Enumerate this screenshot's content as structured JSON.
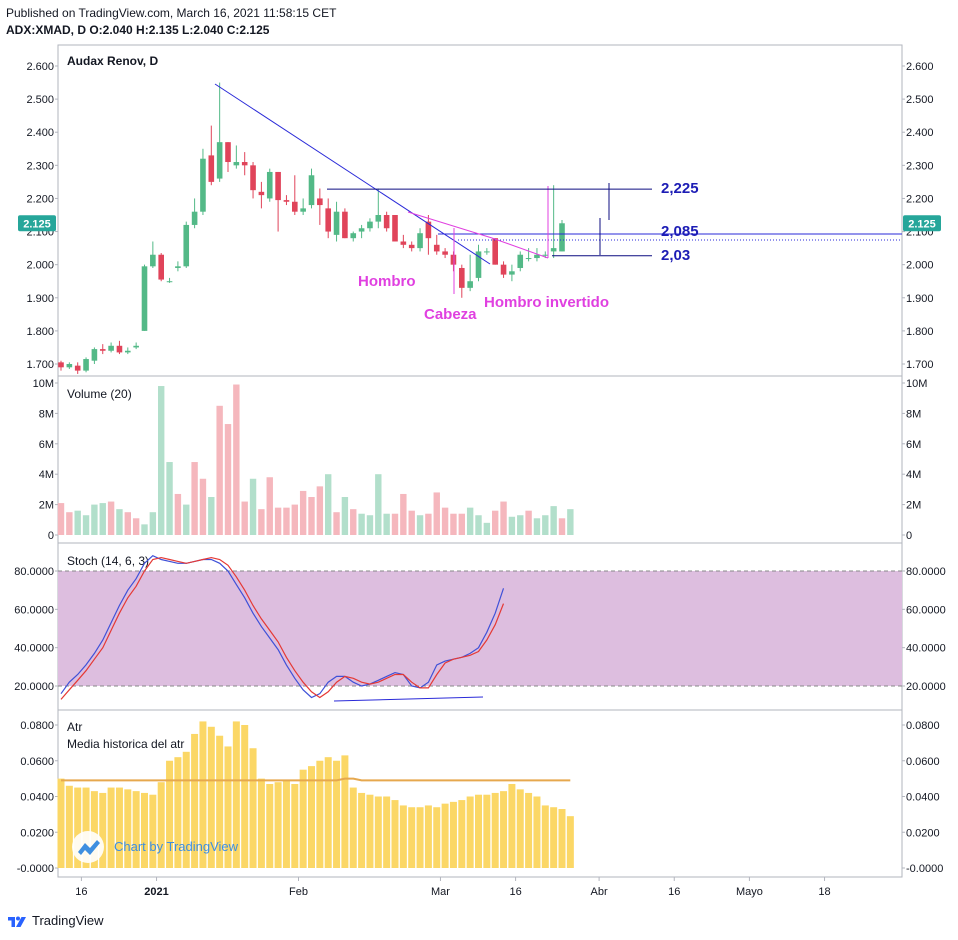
{
  "header": {
    "published": "Published on TradingView.com, March 16, 2021 11:58:15 CET",
    "symbol_line": "ADX:XMAD, D O:2.040 H:2.135 L:2.040 C:2.125"
  },
  "footer": {
    "brand": "TradingView"
  },
  "colors": {
    "up": "#26a69a",
    "up_candle": "#53b987",
    "down": "#e0445a",
    "vol_up": "#b2dfcb",
    "vol_down": "#f5b7bd",
    "stoch_k": "#3f51d8",
    "stoch_d": "#e53935",
    "stoch_band": "#ddbedf",
    "atr": "#fbd766",
    "atr_avg": "#e6a84e",
    "trend": "#2a2ad8",
    "pattern": "#e040e0",
    "level": "#0c0c80",
    "label_blue": "#1d1db5"
  },
  "chart_data": [
    {
      "type": "candlestick",
      "title": "Audax Renov, D",
      "last_price_label": "2.125",
      "y_ticks": [
        "2.600",
        "2.500",
        "2.400",
        "2.300",
        "2.200",
        "2.100",
        "2.000",
        "1.900",
        "1.800",
        "1.700"
      ],
      "ylim": [
        1.68,
        2.66
      ],
      "x_ticks": [
        "16",
        "2021",
        "Feb",
        "Mar",
        "16",
        "Abr",
        "16",
        "Mayo",
        "18"
      ],
      "x_tick_index": [
        4,
        13,
        30,
        47,
        56,
        66,
        75,
        84,
        93
      ],
      "candles": [
        {
          "o": 1.705,
          "h": 1.71,
          "l": 1.68,
          "c": 1.69
        },
        {
          "o": 1.69,
          "h": 1.705,
          "l": 1.685,
          "c": 1.7
        },
        {
          "o": 1.695,
          "h": 1.705,
          "l": 1.67,
          "c": 1.68
        },
        {
          "o": 1.68,
          "h": 1.72,
          "l": 1.675,
          "c": 1.715
        },
        {
          "o": 1.71,
          "h": 1.75,
          "l": 1.7,
          "c": 1.745
        },
        {
          "o": 1.745,
          "h": 1.76,
          "l": 1.73,
          "c": 1.74
        },
        {
          "o": 1.74,
          "h": 1.765,
          "l": 1.735,
          "c": 1.755
        },
        {
          "o": 1.755,
          "h": 1.77,
          "l": 1.73,
          "c": 1.735
        },
        {
          "o": 1.735,
          "h": 1.75,
          "l": 1.73,
          "c": 1.74
        },
        {
          "o": 1.75,
          "h": 1.765,
          "l": 1.745,
          "c": 1.755
        },
        {
          "o": 1.8,
          "h": 2.0,
          "l": 1.8,
          "c": 1.995
        },
        {
          "o": 1.995,
          "h": 2.07,
          "l": 1.99,
          "c": 2.03
        },
        {
          "o": 2.03,
          "h": 2.035,
          "l": 1.95,
          "c": 1.955
        },
        {
          "o": 1.95,
          "h": 1.96,
          "l": 1.945,
          "c": 1.95
        },
        {
          "o": 1.99,
          "h": 2.01,
          "l": 1.98,
          "c": 1.995
        },
        {
          "o": 1.995,
          "h": 2.13,
          "l": 1.99,
          "c": 2.12
        },
        {
          "o": 2.12,
          "h": 2.2,
          "l": 2.11,
          "c": 2.16
        },
        {
          "o": 2.16,
          "h": 2.35,
          "l": 2.15,
          "c": 2.32
        },
        {
          "o": 2.33,
          "h": 2.42,
          "l": 2.24,
          "c": 2.25
        },
        {
          "o": 2.26,
          "h": 2.55,
          "l": 2.25,
          "c": 2.37
        },
        {
          "o": 2.37,
          "h": 2.37,
          "l": 2.28,
          "c": 2.31
        },
        {
          "o": 2.3,
          "h": 2.36,
          "l": 2.29,
          "c": 2.31
        },
        {
          "o": 2.31,
          "h": 2.34,
          "l": 2.27,
          "c": 2.3
        },
        {
          "o": 2.3,
          "h": 2.31,
          "l": 2.2,
          "c": 2.225
        },
        {
          "o": 2.22,
          "h": 2.25,
          "l": 2.17,
          "c": 2.21
        },
        {
          "o": 2.2,
          "h": 2.29,
          "l": 2.19,
          "c": 2.28
        },
        {
          "o": 2.28,
          "h": 2.28,
          "l": 2.1,
          "c": 2.195
        },
        {
          "o": 2.195,
          "h": 2.21,
          "l": 2.18,
          "c": 2.19
        },
        {
          "o": 2.19,
          "h": 2.27,
          "l": 2.15,
          "c": 2.16
        },
        {
          "o": 2.16,
          "h": 2.2,
          "l": 2.15,
          "c": 2.17
        },
        {
          "o": 2.18,
          "h": 2.29,
          "l": 2.17,
          "c": 2.27
        },
        {
          "o": 2.2,
          "h": 2.23,
          "l": 2.12,
          "c": 2.18
        },
        {
          "o": 2.17,
          "h": 2.2,
          "l": 2.08,
          "c": 2.1
        },
        {
          "o": 2.09,
          "h": 2.19,
          "l": 2.07,
          "c": 2.16
        },
        {
          "o": 2.16,
          "h": 2.17,
          "l": 2.08,
          "c": 2.08
        },
        {
          "o": 2.08,
          "h": 2.1,
          "l": 2.07,
          "c": 2.095
        },
        {
          "o": 2.1,
          "h": 2.12,
          "l": 2.08,
          "c": 2.11
        },
        {
          "o": 2.11,
          "h": 2.14,
          "l": 2.1,
          "c": 2.13
        },
        {
          "o": 2.13,
          "h": 2.23,
          "l": 2.11,
          "c": 2.15
        },
        {
          "o": 2.15,
          "h": 2.16,
          "l": 2.1,
          "c": 2.11
        },
        {
          "o": 2.15,
          "h": 2.15,
          "l": 2.07,
          "c": 2.07
        },
        {
          "o": 2.07,
          "h": 2.09,
          "l": 2.05,
          "c": 2.06
        },
        {
          "o": 2.06,
          "h": 2.07,
          "l": 2.04,
          "c": 2.05
        },
        {
          "o": 2.05,
          "h": 2.11,
          "l": 2.04,
          "c": 2.095
        },
        {
          "o": 2.13,
          "h": 2.15,
          "l": 2.03,
          "c": 2.08
        },
        {
          "o": 2.06,
          "h": 2.09,
          "l": 2.03,
          "c": 2.04
        },
        {
          "o": 2.04,
          "h": 2.05,
          "l": 2.02,
          "c": 2.03
        },
        {
          "o": 2.03,
          "h": 2.04,
          "l": 1.98,
          "c": 2.0
        },
        {
          "o": 1.99,
          "h": 2.0,
          "l": 1.9,
          "c": 1.93
        },
        {
          "o": 1.93,
          "h": 2.03,
          "l": 1.92,
          "c": 1.95
        },
        {
          "o": 1.96,
          "h": 2.06,
          "l": 1.95,
          "c": 2.04
        },
        {
          "o": 2.04,
          "h": 2.05,
          "l": 2.03,
          "c": 2.04
        },
        {
          "o": 2.08,
          "h": 2.08,
          "l": 2.0,
          "c": 2.0
        },
        {
          "o": 2.0,
          "h": 2.01,
          "l": 1.96,
          "c": 1.97
        },
        {
          "o": 1.97,
          "h": 2.0,
          "l": 1.95,
          "c": 1.98
        },
        {
          "o": 1.99,
          "h": 2.04,
          "l": 1.98,
          "c": 2.03
        },
        {
          "o": 2.02,
          "h": 2.05,
          "l": 2.01,
          "c": 2.02
        },
        {
          "o": 2.02,
          "h": 2.05,
          "l": 2.01,
          "c": 2.03
        },
        {
          "o": 2.03,
          "h": 2.04,
          "l": 2.02,
          "c": 2.03
        },
        {
          "o": 2.04,
          "h": 2.24,
          "l": 2.02,
          "c": 2.05
        },
        {
          "o": 2.04,
          "h": 2.135,
          "l": 2.04,
          "c": 2.125
        }
      ],
      "price_levels": [
        {
          "label": "2,225",
          "value": 2.225
        },
        {
          "label": "2,085",
          "value": 2.085
        },
        {
          "label": "2,03",
          "value": 2.03
        }
      ],
      "annotations": [
        "Hombro",
        "Cabeza",
        "Hombro invertido"
      ]
    },
    {
      "type": "bar",
      "title": "Volume (20)",
      "y_ticks": [
        "10M",
        "8M",
        "6M",
        "4M",
        "2M",
        "0"
      ],
      "ylim": [
        0,
        10
      ],
      "values": [
        2.1,
        1.5,
        1.6,
        1.3,
        2.0,
        2.1,
        2.2,
        1.7,
        1.5,
        1.1,
        0.7,
        1.5,
        9.8,
        4.8,
        2.7,
        2.0,
        4.8,
        3.7,
        2.5,
        8.5,
        7.3,
        9.9,
        2.2,
        3.7,
        1.7,
        3.8,
        1.8,
        1.8,
        2.0,
        2.9,
        2.5,
        3.2,
        4.0,
        1.5,
        2.5,
        1.7,
        1.4,
        1.3,
        4.0,
        1.4,
        1.4,
        2.7,
        1.6,
        1.3,
        1.4,
        2.8,
        1.8,
        1.4,
        1.4,
        1.8,
        1.3,
        0.8,
        1.6,
        2.2,
        1.2,
        1.3,
        1.6,
        1.1,
        1.3,
        1.9,
        1.1,
        1.7
      ],
      "up": [
        false,
        false,
        true,
        true,
        true,
        true,
        false,
        true,
        false,
        false,
        true,
        true,
        true,
        true,
        false,
        true,
        false,
        false,
        true,
        false,
        false,
        false,
        false,
        true,
        false,
        false,
        false,
        false,
        false,
        false,
        false,
        false,
        true,
        false,
        true,
        false,
        true,
        true,
        true,
        true,
        false,
        false,
        false,
        true,
        false,
        false,
        false,
        false,
        false,
        true,
        true,
        true,
        false,
        false,
        true,
        true,
        false,
        true,
        true,
        true,
        false,
        true
      ]
    },
    {
      "type": "line",
      "title": "Stoch (14, 6, 3)",
      "y_ticks": [
        "80.0000",
        "60.0000",
        "40.0000",
        "20.0000"
      ],
      "ylim": [
        10,
        92
      ],
      "band": [
        20,
        80
      ],
      "series": [
        {
          "values": [
            16,
            22,
            26,
            31,
            37,
            44,
            53,
            62,
            70,
            76,
            84,
            88,
            86,
            85,
            84,
            84,
            85,
            86,
            86,
            84,
            80,
            73,
            66,
            58,
            51,
            45,
            39,
            31,
            24,
            18,
            14,
            16,
            22,
            25,
            25,
            22,
            20,
            21,
            23,
            25,
            27,
            26,
            20,
            19,
            22,
            31,
            33,
            34,
            35,
            37,
            40,
            48,
            58,
            71
          ]
        },
        {
          "values": [
            13,
            18,
            23,
            28,
            34,
            40,
            49,
            58,
            66,
            72,
            80,
            86,
            87,
            86,
            85,
            84,
            85,
            86,
            87,
            86,
            83,
            77,
            70,
            62,
            55,
            49,
            43,
            35,
            28,
            22,
            17,
            14,
            17,
            22,
            25,
            24,
            22,
            21,
            22,
            24,
            26,
            26,
            22,
            19,
            19,
            26,
            32,
            34,
            35,
            36,
            38,
            44,
            52,
            63
          ]
        }
      ]
    },
    {
      "type": "bar",
      "title": "Atr",
      "subtitle": "Media historica del atr",
      "y_ticks": [
        "0.0800",
        "0.0600",
        "0.0400",
        "0.0200",
        "-0.0000"
      ],
      "ylim": [
        -0.003,
        0.086
      ],
      "values": [
        0.05,
        0.046,
        0.045,
        0.045,
        0.043,
        0.042,
        0.045,
        0.045,
        0.044,
        0.043,
        0.042,
        0.041,
        0.048,
        0.06,
        0.062,
        0.065,
        0.075,
        0.082,
        0.079,
        0.074,
        0.068,
        0.082,
        0.08,
        0.067,
        0.05,
        0.047,
        0.048,
        0.049,
        0.047,
        0.055,
        0.057,
        0.06,
        0.062,
        0.06,
        0.063,
        0.045,
        0.042,
        0.041,
        0.04,
        0.04,
        0.038,
        0.035,
        0.034,
        0.034,
        0.035,
        0.034,
        0.036,
        0.037,
        0.038,
        0.04,
        0.041,
        0.041,
        0.042,
        0.043,
        0.047,
        0.044,
        0.042,
        0.04,
        0.035,
        0.034,
        0.033,
        0.029
      ],
      "avg_values": [
        0.049,
        0.049,
        0.049,
        0.049,
        0.049,
        0.049,
        0.049,
        0.049,
        0.049,
        0.049,
        0.049,
        0.049,
        0.049,
        0.049,
        0.049,
        0.049,
        0.049,
        0.049,
        0.049,
        0.049,
        0.049,
        0.049,
        0.049,
        0.049,
        0.049,
        0.049,
        0.049,
        0.049,
        0.049,
        0.049,
        0.049,
        0.049,
        0.049,
        0.049,
        0.05,
        0.05,
        0.049,
        0.049,
        0.049,
        0.049,
        0.049,
        0.049,
        0.049,
        0.049,
        0.049,
        0.049,
        0.049,
        0.049,
        0.049,
        0.049,
        0.049,
        0.049,
        0.049,
        0.049,
        0.049,
        0.049,
        0.049,
        0.049,
        0.049,
        0.049,
        0.049,
        0.049
      ],
      "watermark": "Chart by TradingView"
    }
  ]
}
